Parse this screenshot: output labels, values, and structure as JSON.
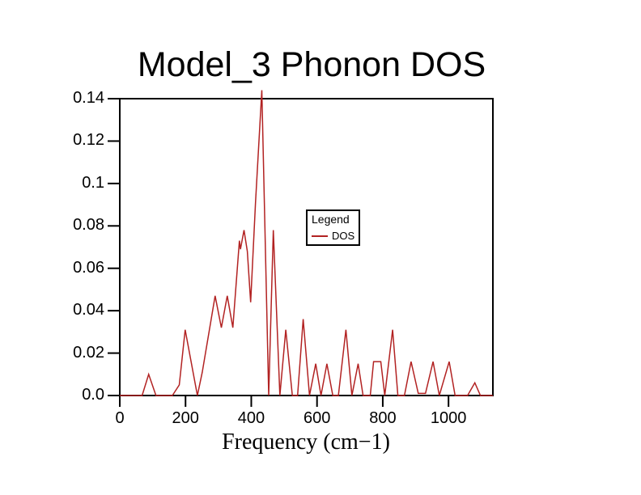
{
  "page": {
    "background": "#ffffff"
  },
  "colors": {
    "line": "#b22222",
    "axis": "#000000",
    "text": "#000000"
  },
  "chart_data": {
    "type": "line",
    "title": "Model_3 Phonon DOS",
    "xlabel": "Frequency (cm−1)",
    "ylabel": "",
    "xlim": [
      0,
      1135
    ],
    "ylim": [
      0,
      0.14
    ],
    "grid": false,
    "x_ticks": [
      {
        "value": 0,
        "label": "0"
      },
      {
        "value": 200,
        "label": "200"
      },
      {
        "value": 400,
        "label": "400"
      },
      {
        "value": 600,
        "label": "600"
      },
      {
        "value": 800,
        "label": "800"
      },
      {
        "value": 1000,
        "label": "1000"
      }
    ],
    "y_ticks": [
      {
        "value": 0.0,
        "label": "0.0"
      },
      {
        "value": 0.02,
        "label": "0.02"
      },
      {
        "value": 0.04,
        "label": "0.04"
      },
      {
        "value": 0.06,
        "label": "0.06"
      },
      {
        "value": 0.08,
        "label": "0.08"
      },
      {
        "value": 0.1,
        "label": "0.1"
      },
      {
        "value": 0.12,
        "label": "0.12"
      },
      {
        "value": 0.14,
        "label": "0.14"
      }
    ],
    "legend": {
      "title": "Legend",
      "position": "center-right",
      "entries": [
        {
          "label": "DOS",
          "color": "#b22222"
        }
      ]
    },
    "series": [
      {
        "name": "DOS",
        "color": "#b22222",
        "points": [
          [
            0,
            0
          ],
          [
            68,
            0
          ],
          [
            88,
            0.01
          ],
          [
            110,
            0
          ],
          [
            160,
            0
          ],
          [
            181,
            0.005
          ],
          [
            199,
            0.031
          ],
          [
            236,
            0
          ],
          [
            251,
            0.011
          ],
          [
            290,
            0.047
          ],
          [
            309,
            0.032
          ],
          [
            327,
            0.047
          ],
          [
            344,
            0.032
          ],
          [
            364,
            0.073
          ],
          [
            367,
            0.069
          ],
          [
            378,
            0.078
          ],
          [
            388,
            0.068
          ],
          [
            398,
            0.044
          ],
          [
            413,
            0.091
          ],
          [
            432,
            0.144
          ],
          [
            453,
            0
          ],
          [
            467,
            0.078
          ],
          [
            487,
            0
          ],
          [
            505,
            0.031
          ],
          [
            525,
            0
          ],
          [
            541,
            0
          ],
          [
            558,
            0.036
          ],
          [
            577,
            0
          ],
          [
            596,
            0.015
          ],
          [
            612,
            0
          ],
          [
            630,
            0.015
          ],
          [
            648,
            0
          ],
          [
            665,
            0
          ],
          [
            688,
            0.031
          ],
          [
            706,
            0
          ],
          [
            725,
            0.015
          ],
          [
            740,
            0
          ],
          [
            762,
            0
          ],
          [
            772,
            0.016
          ],
          [
            794,
            0.016
          ],
          [
            806,
            0
          ],
          [
            830,
            0.031
          ],
          [
            846,
            0
          ],
          [
            866,
            0
          ],
          [
            886,
            0.016
          ],
          [
            908,
            0.001
          ],
          [
            930,
            0.001
          ],
          [
            953,
            0.016
          ],
          [
            972,
            0
          ],
          [
            1002,
            0.016
          ],
          [
            1020,
            0
          ],
          [
            1058,
            0
          ],
          [
            1080,
            0.006
          ],
          [
            1097,
            0
          ],
          [
            1135,
            0
          ]
        ]
      }
    ]
  }
}
